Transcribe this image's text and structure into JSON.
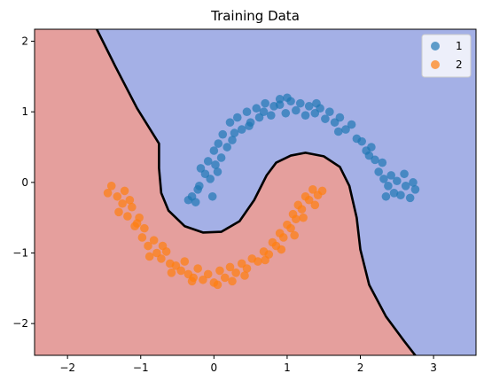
{
  "chart_data": {
    "type": "scatter",
    "title": "Training Data",
    "xlabel": "",
    "ylabel": "",
    "xlim": [
      -2.45,
      3.58
    ],
    "ylim": [
      -2.45,
      2.17
    ],
    "xticks": [
      -2,
      -1,
      0,
      1,
      2,
      3
    ],
    "yticks": [
      -2,
      -1,
      0,
      1,
      2
    ],
    "grid": false,
    "legend_position": "top-right",
    "decision_regions": {
      "class_1_color": "#a4b0e6",
      "class_2_color": "#e59f9d",
      "boundary_color": "#000000",
      "boundary": [
        [
          -1.6,
          2.17
        ],
        [
          -1.35,
          1.65
        ],
        [
          -1.05,
          1.05
        ],
        [
          -0.75,
          0.55
        ],
        [
          -0.75,
          0.2
        ],
        [
          -0.72,
          -0.15
        ],
        [
          -0.62,
          -0.4
        ],
        [
          -0.4,
          -0.62
        ],
        [
          -0.15,
          -0.71
        ],
        [
          0.1,
          -0.7
        ],
        [
          0.35,
          -0.55
        ],
        [
          0.55,
          -0.25
        ],
        [
          0.72,
          0.1
        ],
        [
          0.85,
          0.28
        ],
        [
          1.05,
          0.38
        ],
        [
          1.25,
          0.42
        ],
        [
          1.5,
          0.37
        ],
        [
          1.72,
          0.22
        ],
        [
          1.85,
          -0.05
        ],
        [
          1.95,
          -0.5
        ],
        [
          2.0,
          -0.95
        ],
        [
          2.12,
          -1.45
        ],
        [
          2.35,
          -1.9
        ],
        [
          2.6,
          -2.25
        ],
        [
          2.75,
          -2.45
        ]
      ]
    },
    "series": [
      {
        "name": "1",
        "color": "#1f77b4",
        "points": [
          [
            -0.35,
            -0.25
          ],
          [
            -0.3,
            -0.2
          ],
          [
            -0.25,
            -0.28
          ],
          [
            -0.22,
            -0.1
          ],
          [
            -0.2,
            -0.05
          ],
          [
            -0.18,
            0.2
          ],
          [
            -0.12,
            0.12
          ],
          [
            -0.08,
            0.3
          ],
          [
            -0.05,
            0.05
          ],
          [
            0.0,
            0.45
          ],
          [
            0.02,
            0.25
          ],
          [
            0.06,
            0.55
          ],
          [
            0.1,
            0.35
          ],
          [
            0.12,
            0.68
          ],
          [
            0.18,
            0.5
          ],
          [
            0.22,
            0.85
          ],
          [
            0.28,
            0.7
          ],
          [
            0.32,
            0.92
          ],
          [
            0.38,
            0.75
          ],
          [
            0.45,
            1.0
          ],
          [
            0.5,
            0.85
          ],
          [
            0.58,
            1.05
          ],
          [
            0.62,
            0.92
          ],
          [
            0.7,
            1.12
          ],
          [
            0.78,
            0.95
          ],
          [
            0.82,
            1.08
          ],
          [
            0.9,
            1.1
          ],
          [
            0.98,
            0.98
          ],
          [
            1.05,
            1.15
          ],
          [
            1.12,
            1.02
          ],
          [
            1.18,
            1.12
          ],
          [
            1.25,
            0.95
          ],
          [
            1.3,
            1.08
          ],
          [
            1.38,
            0.98
          ],
          [
            1.45,
            1.05
          ],
          [
            1.52,
            0.9
          ],
          [
            1.58,
            1.0
          ],
          [
            1.65,
            0.85
          ],
          [
            1.72,
            0.92
          ],
          [
            1.8,
            0.75
          ],
          [
            1.88,
            0.82
          ],
          [
            1.95,
            0.62
          ],
          [
            2.02,
            0.58
          ],
          [
            2.08,
            0.45
          ],
          [
            2.15,
            0.5
          ],
          [
            2.2,
            0.32
          ],
          [
            2.25,
            0.15
          ],
          [
            2.3,
            0.28
          ],
          [
            2.32,
            0.05
          ],
          [
            2.38,
            -0.05
          ],
          [
            2.42,
            0.1
          ],
          [
            2.46,
            -0.15
          ],
          [
            2.5,
            0.02
          ],
          [
            2.55,
            -0.18
          ],
          [
            2.62,
            -0.05
          ],
          [
            2.68,
            -0.22
          ],
          [
            2.72,
            0.0
          ],
          [
            2.75,
            -0.1
          ],
          [
            -0.02,
            -0.2
          ],
          [
            0.05,
            0.15
          ],
          [
            0.25,
            0.6
          ],
          [
            0.48,
            0.8
          ],
          [
            0.9,
            1.18
          ],
          [
            1.4,
            1.12
          ],
          [
            1.7,
            0.72
          ],
          [
            2.12,
            0.38
          ],
          [
            2.35,
            -0.2
          ],
          [
            2.6,
            0.12
          ],
          [
            0.68,
            1.0
          ],
          [
            1.0,
            1.2
          ]
        ]
      },
      {
        "name": "2",
        "color": "#ff7f0e",
        "points": [
          [
            -1.45,
            -0.15
          ],
          [
            -1.4,
            -0.05
          ],
          [
            -1.32,
            -0.2
          ],
          [
            -1.25,
            -0.3
          ],
          [
            -1.22,
            -0.12
          ],
          [
            -1.18,
            -0.48
          ],
          [
            -1.12,
            -0.35
          ],
          [
            -1.08,
            -0.62
          ],
          [
            -1.02,
            -0.5
          ],
          [
            -0.98,
            -0.78
          ],
          [
            -0.95,
            -0.65
          ],
          [
            -0.9,
            -0.9
          ],
          [
            -0.82,
            -0.82
          ],
          [
            -0.78,
            -1.0
          ],
          [
            -0.72,
            -1.08
          ],
          [
            -0.65,
            -0.98
          ],
          [
            -0.6,
            -1.15
          ],
          [
            -0.52,
            -1.18
          ],
          [
            -0.45,
            -1.25
          ],
          [
            -0.4,
            -1.12
          ],
          [
            -0.35,
            -1.3
          ],
          [
            -0.28,
            -1.35
          ],
          [
            -0.22,
            -1.22
          ],
          [
            -0.15,
            -1.38
          ],
          [
            -0.08,
            -1.3
          ],
          [
            0.0,
            -1.42
          ],
          [
            0.08,
            -1.25
          ],
          [
            0.15,
            -1.35
          ],
          [
            0.22,
            -1.2
          ],
          [
            0.3,
            -1.28
          ],
          [
            0.38,
            -1.15
          ],
          [
            0.45,
            -1.22
          ],
          [
            0.52,
            -1.08
          ],
          [
            0.6,
            -1.12
          ],
          [
            0.68,
            -0.98
          ],
          [
            0.75,
            -1.02
          ],
          [
            0.8,
            -0.85
          ],
          [
            0.85,
            -0.9
          ],
          [
            0.9,
            -0.72
          ],
          [
            0.95,
            -0.78
          ],
          [
            1.0,
            -0.6
          ],
          [
            1.05,
            -0.65
          ],
          [
            1.08,
            -0.45
          ],
          [
            1.12,
            -0.52
          ],
          [
            1.15,
            -0.32
          ],
          [
            1.2,
            -0.38
          ],
          [
            1.25,
            -0.2
          ],
          [
            1.3,
            -0.25
          ],
          [
            1.35,
            -0.1
          ],
          [
            1.42,
            -0.18
          ],
          [
            1.48,
            -0.12
          ],
          [
            -1.3,
            -0.42
          ],
          [
            -1.05,
            -0.58
          ],
          [
            -0.88,
            -1.05
          ],
          [
            -0.58,
            -1.28
          ],
          [
            -0.3,
            -1.4
          ],
          [
            0.05,
            -1.45
          ],
          [
            0.42,
            -1.32
          ],
          [
            0.7,
            -1.1
          ],
          [
            0.92,
            -0.95
          ],
          [
            1.1,
            -0.75
          ],
          [
            1.22,
            -0.5
          ],
          [
            1.38,
            -0.32
          ],
          [
            -1.15,
            -0.25
          ],
          [
            -0.7,
            -0.9
          ],
          [
            0.25,
            -1.4
          ]
        ]
      }
    ]
  }
}
